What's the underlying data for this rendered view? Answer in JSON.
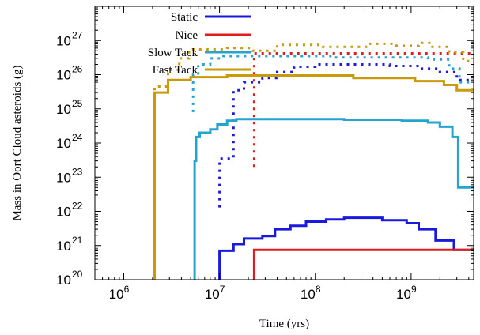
{
  "chart_data": {
    "type": "line",
    "title": "",
    "xlabel": "Time (yrs)",
    "ylabel": "Mass in Oort Cloud asteroids (g)",
    "x_scale": "log",
    "y_scale": "log",
    "xlim": [
      500000,
      4500000000
    ],
    "ylim": [
      1e+20,
      1e+28
    ],
    "grid": false,
    "legend_position": "top-left",
    "x_ticks": [
      {
        "value": 1000000,
        "base": "10",
        "exp": "6"
      },
      {
        "value": 10000000,
        "base": "10",
        "exp": "7"
      },
      {
        "value": 100000000,
        "base": "10",
        "exp": "8"
      },
      {
        "value": 1000000000,
        "base": "10",
        "exp": "9"
      }
    ],
    "y_ticks": [
      {
        "value": 1e+20,
        "base": "10",
        "exp": "20"
      },
      {
        "value": 1e+21,
        "base": "10",
        "exp": "21"
      },
      {
        "value": 1e+22,
        "base": "10",
        "exp": "22"
      },
      {
        "value": 1e+23,
        "base": "10",
        "exp": "23"
      },
      {
        "value": 1e+24,
        "base": "10",
        "exp": "24"
      },
      {
        "value": 1e+25,
        "base": "10",
        "exp": "25"
      },
      {
        "value": 1e+26,
        "base": "10",
        "exp": "26"
      },
      {
        "value": 1e+27,
        "base": "10",
        "exp": "27"
      }
    ],
    "series": [
      {
        "name": "Static",
        "color": "#1a1adf",
        "solid": [
          [
            10000000,
            1e+20
          ],
          [
            10000000,
            7e+20
          ],
          [
            14000000,
            7e+20
          ],
          [
            14000000,
            1.1e+21
          ],
          [
            18000000,
            1.1e+21
          ],
          [
            18000000,
            1.6e+21
          ],
          [
            28000000,
            1.6e+21
          ],
          [
            28000000,
            1.9e+21
          ],
          [
            38000000,
            1.9e+21
          ],
          [
            38000000,
            3e+21
          ],
          [
            55000000,
            3e+21
          ],
          [
            55000000,
            3.8e+21
          ],
          [
            80000000,
            3.8e+21
          ],
          [
            80000000,
            5e+21
          ],
          [
            130000000,
            5e+21
          ],
          [
            130000000,
            5.8e+21
          ],
          [
            200000000,
            5.8e+21
          ],
          [
            200000000,
            6.5e+21
          ],
          [
            500000000,
            6.5e+21
          ],
          [
            500000000,
            5.5e+21
          ],
          [
            900000000,
            5.5e+21
          ],
          [
            900000000,
            4.5e+21
          ],
          [
            1200000000,
            4.5e+21
          ],
          [
            1200000000,
            3e+21
          ],
          [
            1800000000,
            3e+21
          ],
          [
            1800000000,
            1.4e+21
          ],
          [
            2800000000,
            1.4e+21
          ],
          [
            2800000000,
            7.5e+20
          ],
          [
            4500000000,
            7.5e+20
          ]
        ],
        "dotted": [
          [
            10000000,
            1.3e+22
          ],
          [
            10000000,
            3.5e+23
          ],
          [
            14000000,
            3.5e+23
          ],
          [
            14000000,
            3.5e+25
          ],
          [
            18000000,
            3.5e+25
          ],
          [
            18000000,
            6e+25
          ],
          [
            28000000,
            6e+25
          ],
          [
            28000000,
            8e+25
          ],
          [
            40000000,
            8e+25
          ],
          [
            40000000,
            1.2e+26
          ],
          [
            60000000,
            1.2e+26
          ],
          [
            60000000,
            1.7e+26
          ],
          [
            100000000,
            1.7e+26
          ],
          [
            100000000,
            2e+26
          ],
          [
            600000000,
            2e+26
          ],
          [
            600000000,
            1.8e+26
          ],
          [
            1200000000,
            1.8e+26
          ],
          [
            1200000000,
            1.5e+26
          ],
          [
            2000000000,
            1.5e+26
          ],
          [
            2000000000,
            1.2e+26
          ],
          [
            3000000000,
            1.2e+26
          ],
          [
            3000000000,
            7e+25
          ],
          [
            4500000000,
            7e+25
          ]
        ]
      },
      {
        "name": "Nice",
        "color": "#e51a1a",
        "solid": [
          [
            23000000,
            1e+20
          ],
          [
            23000000,
            7.5e+20
          ],
          [
            4500000000,
            7.5e+20
          ]
        ],
        "dotted": [
          [
            23000000,
            2e+23
          ],
          [
            23000000,
            4.2e+26
          ],
          [
            4500000000,
            4.2e+26
          ]
        ]
      },
      {
        "name": "Slow Tack",
        "color": "#25a4cf",
        "solid": [
          [
            5500000,
            1e+20
          ],
          [
            5500000,
            3e+23
          ],
          [
            5700000,
            3e+23
          ],
          [
            5700000,
            1.5e+24
          ],
          [
            6200000,
            1.5e+24
          ],
          [
            6200000,
            2e+24
          ],
          [
            8000000,
            2e+24
          ],
          [
            8000000,
            2.5e+24
          ],
          [
            9500000,
            2.5e+24
          ],
          [
            9500000,
            3.5e+24
          ],
          [
            12000000,
            3.5e+24
          ],
          [
            12000000,
            4.5e+24
          ],
          [
            15000000,
            4.5e+24
          ],
          [
            15000000,
            5e+24
          ],
          [
            200000000,
            5e+24
          ],
          [
            200000000,
            4.8e+24
          ],
          [
            800000000,
            4.8e+24
          ],
          [
            800000000,
            4.5e+24
          ],
          [
            1500000000,
            4.5e+24
          ],
          [
            1500000000,
            4e+24
          ],
          [
            2000000000,
            4e+24
          ],
          [
            2000000000,
            3e+24
          ],
          [
            2700000000,
            3e+24
          ],
          [
            2700000000,
            1.5e+24
          ],
          [
            3100000000,
            1.5e+24
          ],
          [
            3100000000,
            5e+22
          ],
          [
            4500000000,
            5e+22
          ]
        ],
        "dotted": [
          [
            5300000,
            8e+24
          ],
          [
            5300000,
            1e+26
          ],
          [
            6000000,
            1e+26
          ],
          [
            6000000,
            2e+26
          ],
          [
            8000000,
            2e+26
          ],
          [
            8000000,
            3e+26
          ],
          [
            11000000,
            3e+26
          ],
          [
            11000000,
            3.5e+26
          ],
          [
            150000000,
            3.5e+26
          ],
          [
            150000000,
            3.2e+26
          ],
          [
            1500000000,
            3.2e+26
          ],
          [
            1500000000,
            2.8e+26
          ],
          [
            2500000000,
            2.8e+26
          ],
          [
            2500000000,
            1.5e+26
          ],
          [
            3200000000,
            1.5e+26
          ],
          [
            3200000000,
            6e+25
          ],
          [
            4500000000,
            6e+25
          ]
        ]
      },
      {
        "name": "Fast Tack",
        "color": "#c99a0a",
        "solid": [
          [
            2100000,
            1e+20
          ],
          [
            2100000,
            3e+25
          ],
          [
            2900000,
            3e+25
          ],
          [
            2900000,
            7e+25
          ],
          [
            5000000,
            7e+25
          ],
          [
            5000000,
            8.5e+25
          ],
          [
            12000000,
            8.5e+25
          ],
          [
            12000000,
            9.5e+25
          ],
          [
            250000000,
            9.5e+25
          ],
          [
            250000000,
            8e+25
          ],
          [
            1100000000,
            8e+25
          ],
          [
            1100000000,
            6.5e+25
          ],
          [
            2200000000,
            6.5e+25
          ],
          [
            2200000000,
            5e+25
          ],
          [
            3000000000,
            5e+25
          ],
          [
            3000000000,
            3.5e+25
          ],
          [
            4500000000,
            3.5e+25
          ]
        ],
        "dotted": [
          [
            2100000,
            3.5e+25
          ],
          [
            2100000,
            4.5e+25
          ],
          [
            2900000,
            4.5e+25
          ],
          [
            2900000,
            1.4e+26
          ],
          [
            3800000,
            1.4e+26
          ],
          [
            3800000,
            3e+26
          ],
          [
            4800000,
            3e+26
          ],
          [
            4800000,
            5.5e+26
          ],
          [
            12000000,
            5.5e+26
          ],
          [
            12000000,
            6e+26
          ],
          [
            22000000,
            6e+26
          ],
          [
            22000000,
            5e+26
          ],
          [
            40000000,
            5e+26
          ],
          [
            40000000,
            7.5e+26
          ],
          [
            120000000,
            7.5e+26
          ],
          [
            120000000,
            6.5e+26
          ],
          [
            350000000,
            6.5e+26
          ],
          [
            350000000,
            8e+26
          ],
          [
            650000000,
            8e+26
          ],
          [
            650000000,
            7e+26
          ],
          [
            1200000000,
            7e+26
          ],
          [
            1200000000,
            8.5e+26
          ],
          [
            1600000000,
            8.5e+26
          ],
          [
            1600000000,
            6.5e+26
          ],
          [
            2500000000,
            6.5e+26
          ],
          [
            2500000000,
            4.5e+26
          ],
          [
            3500000000,
            4.5e+26
          ],
          [
            3500000000,
            2.5e+26
          ],
          [
            4500000000,
            2.5e+26
          ]
        ]
      }
    ]
  }
}
